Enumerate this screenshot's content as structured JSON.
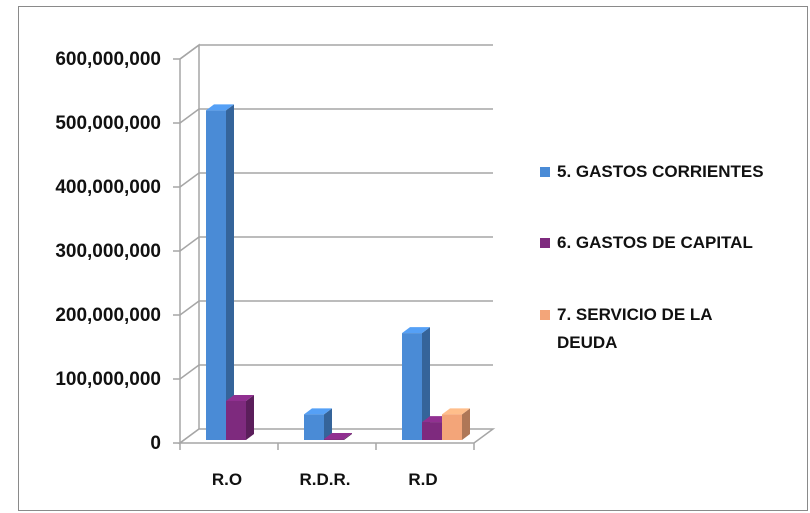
{
  "chart_data": {
    "type": "bar",
    "title": "",
    "xlabel": "",
    "ylabel": "",
    "categories": [
      "R.O",
      "R.D.R.",
      "R.D"
    ],
    "series": [
      {
        "name": "5. GASTOS CORRIENTES",
        "values": [
          515000000,
          40000000,
          167000000
        ],
        "color": "#4a8bd6"
      },
      {
        "name": "6. GASTOS DE CAPITAL",
        "values": [
          61000000,
          1500000,
          28000000
        ],
        "color": "#7e2a7e"
      },
      {
        "name": "7. SERVICIO DE LA DEUDA",
        "values": [
          0,
          0,
          40000000
        ],
        "color": "#f3a579"
      }
    ],
    "ylim": [
      0,
      600000000
    ],
    "ticks": [
      "0",
      "100,000,000",
      "200,000,000",
      "300,000,000",
      "400,000,000",
      "500,000,000",
      "600,000,000"
    ],
    "legend_lines": [
      [
        "5. GASTOS CORRIENTES"
      ],
      [
        "6. GASTOS DE CAPITAL"
      ],
      [
        "7. SERVICIO DE LA",
        "DEUDA"
      ]
    ],
    "grid": true,
    "legend_position": "right",
    "style": "3d-clustered-column"
  }
}
